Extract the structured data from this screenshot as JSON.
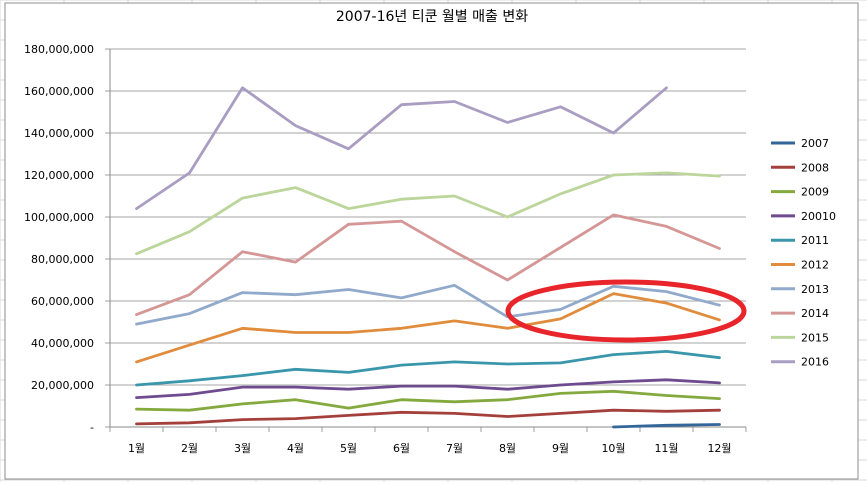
{
  "chart_data": {
    "type": "line",
    "title": "2007-16년 티쿤 월별 매출 변화",
    "categories": [
      "1월",
      "2월",
      "3월",
      "4월",
      "5월",
      "6월",
      "7월",
      "8월",
      "9월",
      "10월",
      "11월",
      "12월"
    ],
    "ylim": [
      0,
      180000000
    ],
    "yticks": [
      {
        "v": 0,
        "label": "-"
      },
      {
        "v": 20000000,
        "label": "20,000,000"
      },
      {
        "v": 40000000,
        "label": "40,000,000"
      },
      {
        "v": 60000000,
        "label": "60,000,000"
      },
      {
        "v": 80000000,
        "label": "80,000,000"
      },
      {
        "v": 100000000,
        "label": "100,000,000"
      },
      {
        "v": 120000000,
        "label": "120,000,000"
      },
      {
        "v": 140000000,
        "label": "140,000,000"
      },
      {
        "v": 160000000,
        "label": "160,000,000"
      },
      {
        "v": 180000000,
        "label": "180,000,000"
      }
    ],
    "grid": true,
    "legend_position": "right",
    "series": [
      {
        "name": "2007",
        "color": "#336699",
        "values": [
          null,
          null,
          null,
          null,
          null,
          null,
          null,
          null,
          null,
          0,
          800000,
          1200000
        ]
      },
      {
        "name": "2008",
        "color": "#a4403c",
        "values": [
          1500000,
          2000000,
          3500000,
          4000000,
          5500000,
          7000000,
          6500000,
          5000000,
          6500000,
          8000000,
          7500000,
          8000000
        ]
      },
      {
        "name": "2009",
        "color": "#84a93e",
        "values": [
          8500000,
          8000000,
          11000000,
          13000000,
          9000000,
          13000000,
          12000000,
          13000000,
          16000000,
          17000000,
          15000000,
          13500000
        ]
      },
      {
        "name": "20010",
        "color": "#6e4b8f",
        "values": [
          14000000,
          15500000,
          19000000,
          19000000,
          18000000,
          19500000,
          19500000,
          18000000,
          20000000,
          21500000,
          22500000,
          21000000
        ]
      },
      {
        "name": "2011",
        "color": "#3a97ab",
        "values": [
          20000000,
          22000000,
          24500000,
          27500000,
          26000000,
          29500000,
          31000000,
          30000000,
          30500000,
          34500000,
          36000000,
          33000000
        ]
      },
      {
        "name": "2012",
        "color": "#e08c3c",
        "values": [
          31000000,
          39000000,
          47000000,
          45000000,
          45000000,
          47000000,
          50500000,
          47000000,
          51500000,
          63500000,
          59000000,
          51000000
        ]
      },
      {
        "name": "2013",
        "color": "#91a9cb",
        "values": [
          49000000,
          54000000,
          64000000,
          63000000,
          65500000,
          61500000,
          67500000,
          52500000,
          56000000,
          67000000,
          64500000,
          58000000
        ]
      },
      {
        "name": "2014",
        "color": "#d49796",
        "values": [
          53500000,
          63000000,
          83500000,
          78500000,
          96500000,
          98000000,
          83500000,
          70000000,
          85500000,
          101000000,
          95500000,
          85000000
        ]
      },
      {
        "name": "2015",
        "color": "#bbd59b",
        "values": [
          82500000,
          93000000,
          109000000,
          114000000,
          104000000,
          108500000,
          110000000,
          100000000,
          111000000,
          120000000,
          121000000,
          119500000
        ]
      },
      {
        "name": "2016",
        "color": "#a99dc1",
        "values": [
          104000000,
          121000000,
          161500000,
          143500000,
          132500000,
          153500000,
          155000000,
          145000000,
          152500000,
          140000000,
          161500000,
          null
        ]
      }
    ]
  },
  "annotation": {
    "color": "#e8252b"
  }
}
